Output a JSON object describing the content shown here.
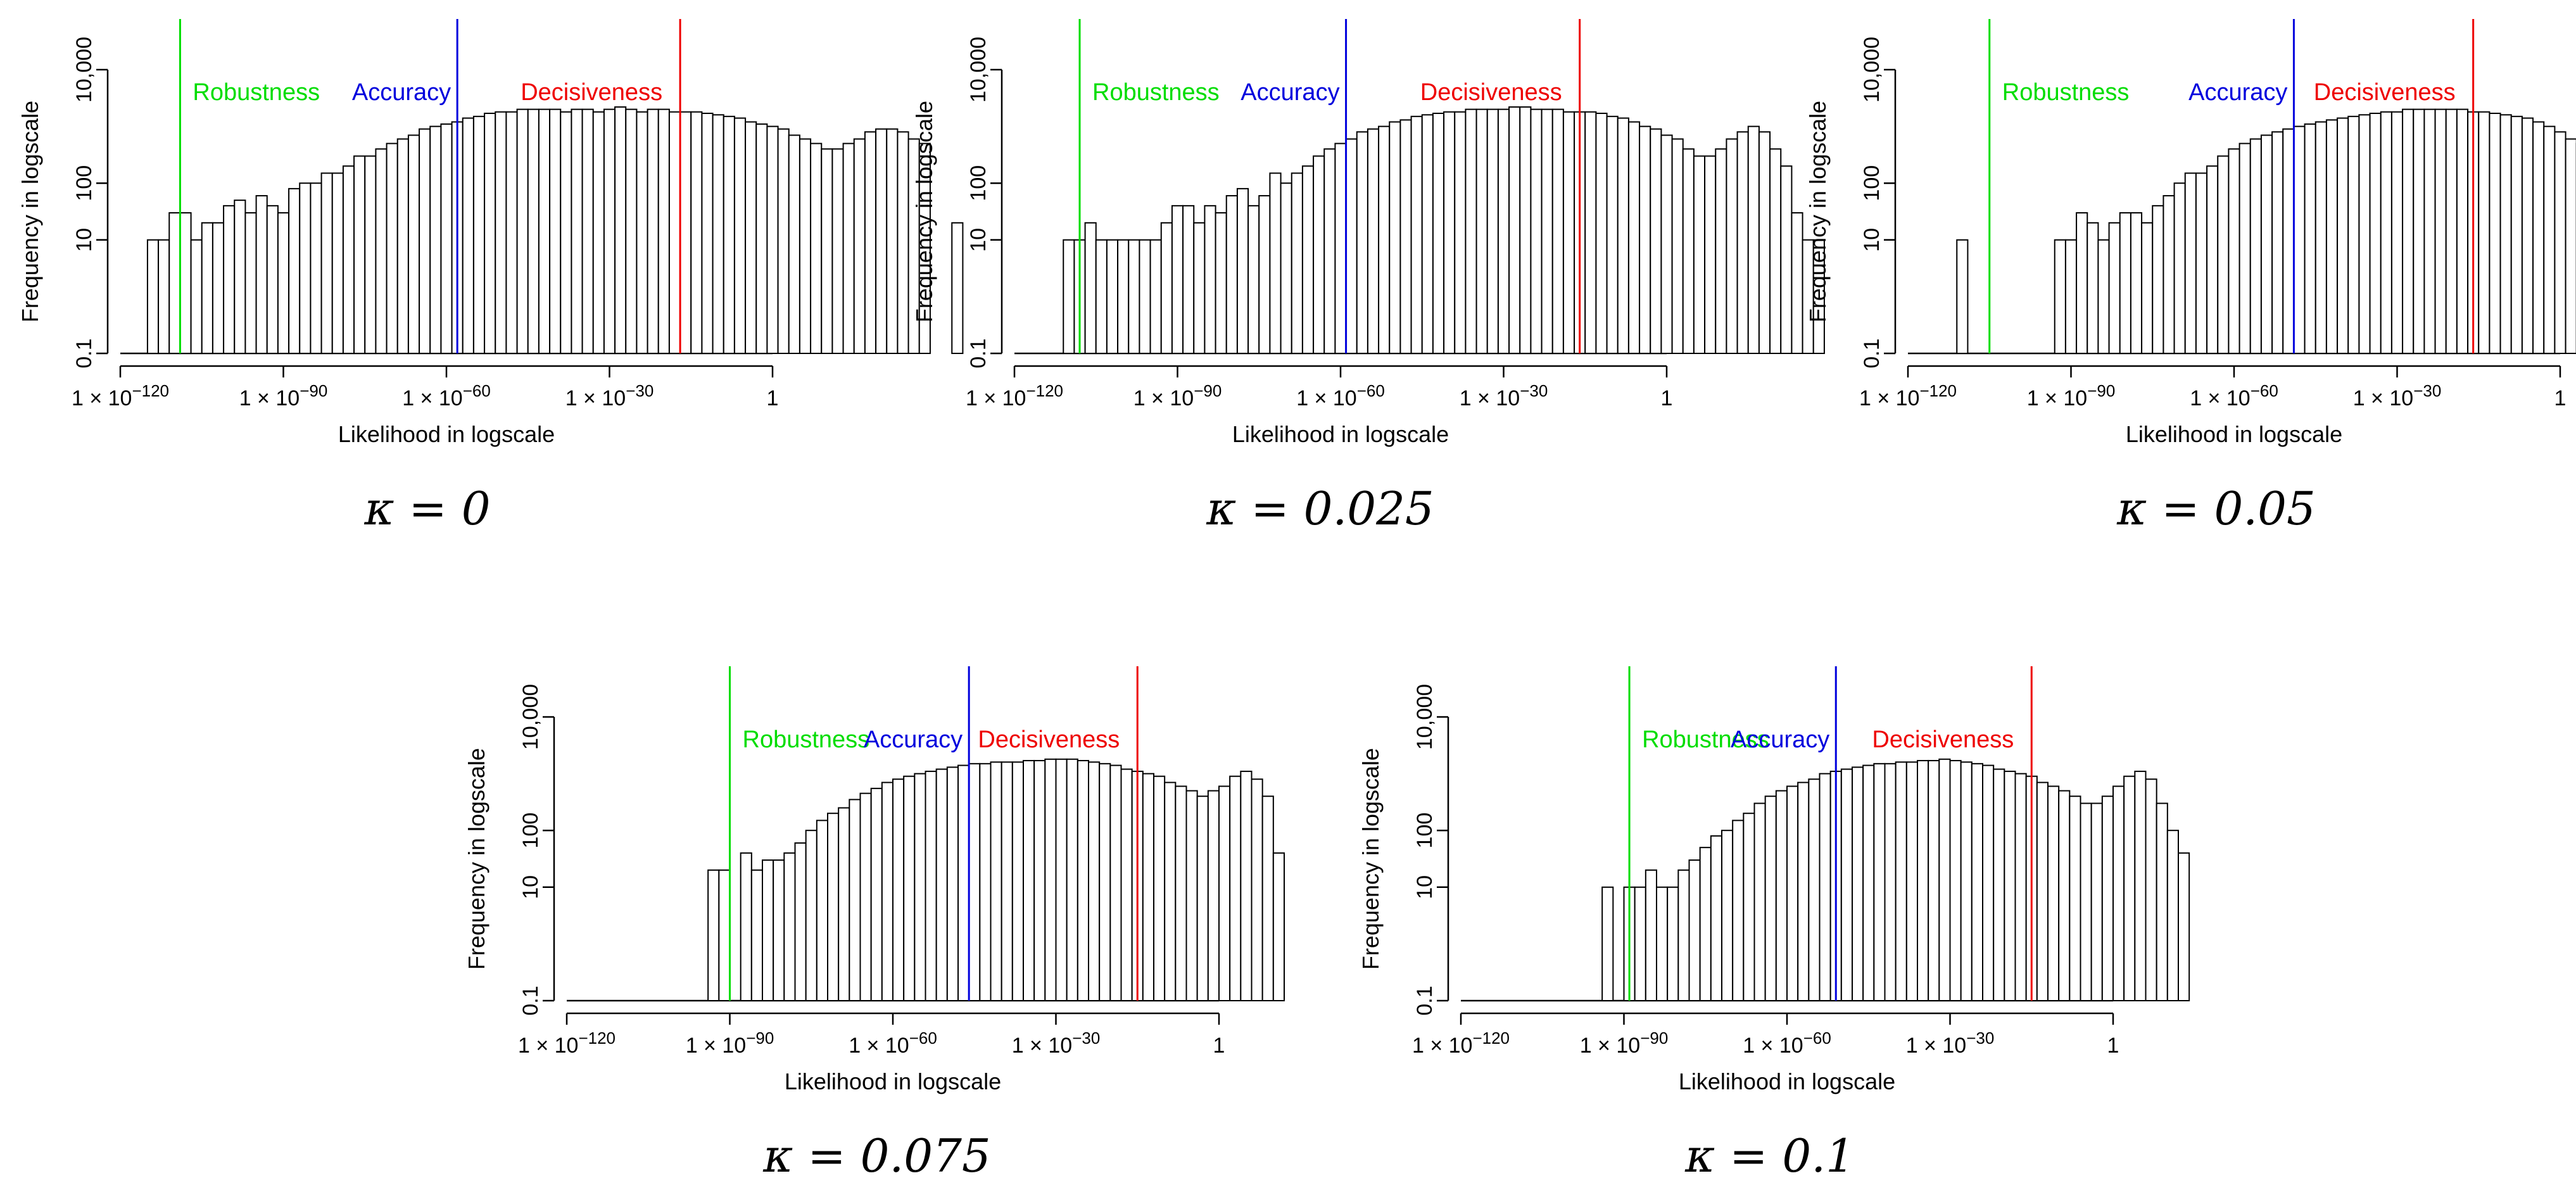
{
  "colors": {
    "robustness": "#00dd00",
    "accuracy": "#0000dd",
    "decisiveness": "#ee0000",
    "bar_stroke": "#000000",
    "bar_fill": "#ffffff"
  },
  "shared": {
    "xlabel": "Likelihood in logscale",
    "ylabel": "Frequency in logscale",
    "x_ticks": [
      {
        "exp": -120,
        "label": "1 × 10",
        "sup": "−120"
      },
      {
        "exp": -90,
        "label": "1 × 10",
        "sup": "−90"
      },
      {
        "exp": -60,
        "label": "1 × 10",
        "sup": "−60"
      },
      {
        "exp": -30,
        "label": "1 × 10",
        "sup": "−30"
      },
      {
        "exp": 0,
        "label": "1",
        "sup": ""
      }
    ],
    "y_ticks": [
      {
        "value": 0.1,
        "label": "0.1"
      },
      {
        "value": 10,
        "label": "10"
      },
      {
        "value": 100,
        "label": "100"
      },
      {
        "value": 10000,
        "label": "10,000"
      }
    ],
    "legend": {
      "robustness": "Robustness",
      "accuracy": "Accuracy",
      "decisiveness": "Decisiveness"
    }
  },
  "chart_data": [
    {
      "type": "bar",
      "caption": "κ = 0",
      "x_scale": "log10",
      "y_scale": "log",
      "xlim_exp": [
        -120,
        0
      ],
      "ylim": [
        0.1,
        10000
      ],
      "lines": {
        "robustness": -109,
        "accuracy": -58,
        "decisiveness": -17
      },
      "bins": {
        "start_exp": -115,
        "width_exp": 2,
        "counts": [
          10,
          10,
          30,
          30,
          10,
          20,
          20,
          40,
          50,
          30,
          60,
          40,
          30,
          80,
          100,
          100,
          150,
          150,
          200,
          300,
          300,
          400,
          500,
          600,
          700,
          900,
          1000,
          1100,
          1200,
          1400,
          1500,
          1700,
          1800,
          1800,
          2000,
          2000,
          2000,
          2000,
          1800,
          2000,
          2000,
          1800,
          2000,
          2200,
          2000,
          1800,
          2000,
          2000,
          1800,
          1800,
          1800,
          1700,
          1600,
          1500,
          1400,
          1200,
          1100,
          1000,
          900,
          700,
          600,
          500,
          400,
          400,
          500,
          600,
          800,
          900,
          900,
          800,
          600,
          500,
          0.1,
          0.1,
          20
        ]
      }
    },
    {
      "type": "bar",
      "caption": "κ = 0.025",
      "x_scale": "log10",
      "y_scale": "log",
      "xlim_exp": [
        -120,
        0
      ],
      "ylim": [
        0.1,
        10000
      ],
      "lines": {
        "robustness": -108,
        "accuracy": -59,
        "decisiveness": -16
      },
      "bins": {
        "start_exp": -111,
        "width_exp": 2,
        "counts": [
          10,
          10,
          20,
          10,
          10,
          10,
          10,
          10,
          10,
          20,
          40,
          40,
          20,
          40,
          30,
          60,
          80,
          40,
          60,
          150,
          100,
          150,
          200,
          300,
          400,
          500,
          600,
          800,
          900,
          1000,
          1200,
          1300,
          1500,
          1600,
          1700,
          1800,
          1800,
          2000,
          2000,
          2000,
          2000,
          2200,
          2200,
          2000,
          2000,
          2000,
          1800,
          1800,
          1800,
          1700,
          1500,
          1400,
          1200,
          1000,
          900,
          700,
          600,
          400,
          300,
          300,
          400,
          600,
          800,
          1000,
          800,
          400,
          200,
          30,
          10,
          10
        ]
      }
    },
    {
      "type": "bar",
      "caption": "κ = 0.05",
      "x_scale": "log10",
      "y_scale": "log",
      "xlim_exp": [
        -120,
        0
      ],
      "ylim": [
        0.1,
        10000
      ],
      "lines": {
        "robustness": -105,
        "accuracy": -49,
        "decisiveness": -16
      },
      "bins": {
        "start_exp": -111,
        "width_exp": 2,
        "counts": [
          10,
          0.1,
          0.1,
          0.1,
          0.1,
          0.1,
          0.1,
          0.1,
          0.1,
          10,
          10,
          30,
          20,
          10,
          20,
          30,
          30,
          20,
          40,
          60,
          100,
          150,
          150,
          200,
          300,
          400,
          500,
          600,
          700,
          800,
          900,
          1000,
          1100,
          1200,
          1300,
          1400,
          1500,
          1600,
          1700,
          1800,
          1800,
          2000,
          2000,
          2000,
          2000,
          2000,
          2000,
          1800,
          1800,
          1700,
          1600,
          1500,
          1400,
          1200,
          1000,
          800,
          600,
          500,
          400,
          300,
          400,
          600,
          800,
          1000,
          1200,
          400,
          150,
          30
        ]
      }
    },
    {
      "type": "bar",
      "caption": "κ = 0.075",
      "x_scale": "log10",
      "y_scale": "log",
      "xlim_exp": [
        -120,
        0
      ],
      "ylim": [
        0.1,
        10000
      ],
      "lines": {
        "robustness": -90,
        "accuracy": -46,
        "decisiveness": -15
      },
      "bins": {
        "start_exp": -94,
        "width_exp": 2,
        "counts": [
          20,
          20,
          0.1,
          40,
          20,
          30,
          30,
          40,
          60,
          100,
          150,
          200,
          250,
          350,
          450,
          550,
          700,
          800,
          900,
          1000,
          1100,
          1200,
          1300,
          1400,
          1500,
          1500,
          1600,
          1600,
          1600,
          1700,
          1700,
          1800,
          1800,
          1800,
          1700,
          1600,
          1500,
          1400,
          1200,
          1100,
          1000,
          900,
          700,
          600,
          500,
          400,
          500,
          600,
          900,
          1100,
          800,
          400,
          40
        ]
      }
    },
    {
      "type": "bar",
      "caption": "κ = 0.1",
      "x_scale": "log10",
      "y_scale": "log",
      "xlim_exp": [
        -120,
        0
      ],
      "ylim": [
        0.1,
        10000
      ],
      "lines": {
        "robustness": -89,
        "accuracy": -51,
        "decisiveness": -15
      },
      "bins": {
        "start_exp": -94,
        "width_exp": 2,
        "counts": [
          10,
          0.1,
          10,
          10,
          20,
          10,
          10,
          20,
          30,
          50,
          80,
          100,
          150,
          200,
          300,
          400,
          500,
          600,
          700,
          800,
          1000,
          1100,
          1200,
          1300,
          1400,
          1500,
          1500,
          1600,
          1600,
          1700,
          1700,
          1800,
          1700,
          1600,
          1500,
          1400,
          1200,
          1100,
          1000,
          900,
          700,
          600,
          500,
          400,
          300,
          300,
          400,
          600,
          900,
          1100,
          800,
          300,
          100,
          40
        ]
      }
    }
  ]
}
